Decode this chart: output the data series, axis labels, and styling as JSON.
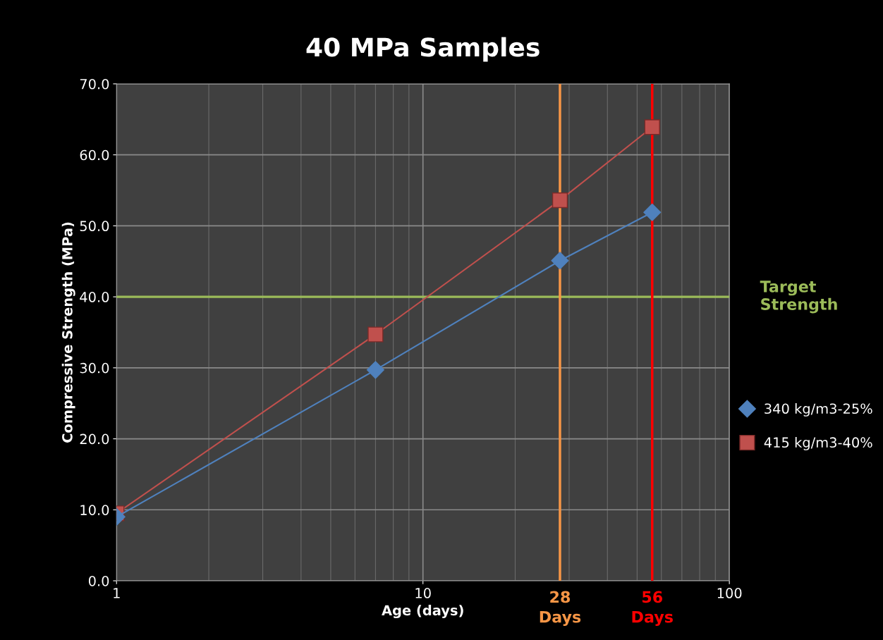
{
  "chart_data": {
    "type": "line",
    "title": "40 MPa Samples",
    "xlabel": "Age (days)",
    "ylabel": "Compressive Strength (MPa)",
    "log": "x",
    "x": [
      1,
      7,
      28,
      56
    ],
    "series": [
      {
        "name": "340 kg/m3-25%",
        "color": "#4f81bd",
        "marker": "diamond",
        "values": [
          9.0,
          29.7,
          45.1,
          51.9
        ]
      },
      {
        "name": "415 kg/m3-40%",
        "color": "#c0504d",
        "marker": "square",
        "values": [
          9.5,
          34.7,
          53.6,
          63.9
        ]
      }
    ],
    "xlim": [
      1,
      100
    ],
    "xticks": [
      1,
      10,
      100
    ],
    "ylim": [
      0,
      70
    ],
    "yticks": [
      {
        "value": 0,
        "label": "0.0"
      },
      {
        "value": 10,
        "label": "10.0"
      },
      {
        "value": 20,
        "label": "20.0"
      },
      {
        "value": 30,
        "label": "30.0"
      },
      {
        "value": 40,
        "label": "40.0"
      },
      {
        "value": 50,
        "label": "50.0"
      },
      {
        "value": 60,
        "label": "60.0"
      },
      {
        "value": 70,
        "label": "70.0"
      }
    ],
    "ref_lines": [
      {
        "axis": "y",
        "value": 40,
        "label": "Target\nStrength",
        "color": "#9bbb59"
      },
      {
        "axis": "x",
        "value": 28,
        "label": "28\nDays",
        "color": "#f79646"
      },
      {
        "axis": "x",
        "value": 56,
        "label": "56\nDays",
        "color": "#ff0000"
      }
    ],
    "grid": true,
    "legend": "right",
    "line_style": "solid"
  }
}
